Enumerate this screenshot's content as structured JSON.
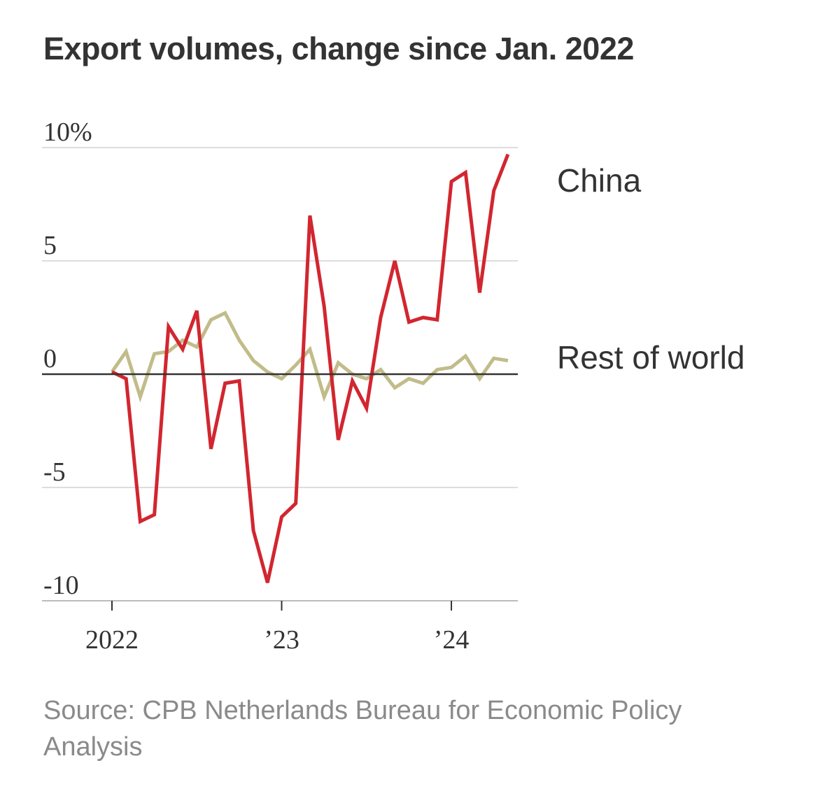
{
  "title": "Export volumes, change since Jan. 2022",
  "source_lines": [
    "Source: CPB Netherlands Bureau for Economic Policy",
    "Analysis"
  ],
  "colors": {
    "china": "#d22630",
    "rest_of_world": "#c2bc8a",
    "grid": "#dddddd",
    "zero_line": "#333333",
    "text": "#333333",
    "source": "#8a8a8a"
  },
  "chart_data": {
    "type": "line",
    "title": "Export volumes, change since Jan. 2022",
    "xlabel": "",
    "ylabel": "",
    "ylim": [
      -10,
      10
    ],
    "y_ticks": [
      10,
      5,
      0,
      -5,
      -10
    ],
    "y_tick_labels": [
      "10%",
      "5",
      "0",
      "-5",
      "-10"
    ],
    "x_ticks": [
      0,
      12,
      24
    ],
    "x_tick_labels": [
      "2022",
      "’23",
      "’24"
    ],
    "x_range": [
      0,
      28.5
    ],
    "grid": true,
    "x": [
      "2022-01",
      "2022-02",
      "2022-03",
      "2022-04",
      "2022-05",
      "2022-06",
      "2022-07",
      "2022-08",
      "2022-09",
      "2022-10",
      "2022-11",
      "2022-12",
      "2023-01",
      "2023-02",
      "2023-03",
      "2023-04",
      "2023-05",
      "2023-06",
      "2023-07",
      "2023-08",
      "2023-09",
      "2023-10",
      "2023-11",
      "2023-12",
      "2024-01",
      "2024-02",
      "2024-03",
      "2024-04",
      "2024-05",
      "2024-06"
    ],
    "series": [
      {
        "name": "China",
        "values": [
          0.1,
          -0.2,
          -6.5,
          -6.2,
          2.1,
          1.1,
          2.8,
          -3.3,
          -0.4,
          -0.3,
          -6.9,
          -9.2,
          -6.3,
          -5.7,
          7.0,
          3.0,
          -2.9,
          -0.3,
          -1.5,
          2.5,
          5.0,
          2.3,
          2.5,
          2.4,
          8.5,
          8.9,
          3.6,
          8.1,
          9.7,
          null
        ]
      },
      {
        "name": "Rest of world",
        "values": [
          0.1,
          1.0,
          -1.0,
          0.9,
          1.0,
          1.5,
          1.2,
          2.4,
          2.7,
          1.5,
          0.6,
          0.1,
          -0.2,
          0.4,
          1.1,
          -1.0,
          0.5,
          0.0,
          -0.2,
          0.2,
          -0.6,
          -0.2,
          -0.4,
          0.2,
          0.3,
          0.8,
          -0.2,
          0.7,
          0.6,
          null
        ]
      }
    ],
    "legend": "direct labels at right end of lines"
  }
}
